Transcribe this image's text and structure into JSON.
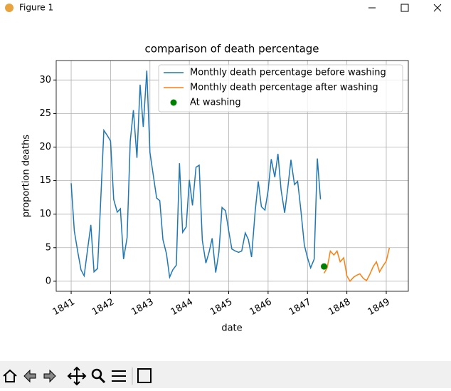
{
  "window": {
    "title": "Figure 1"
  },
  "chart_data": {
    "type": "line",
    "title": "comparison of death percentage",
    "x_label": "date",
    "y_label": "proportion deaths",
    "xlim": [
      1840.62,
      1849.56
    ],
    "ylim": [
      -1.5,
      32.9
    ],
    "xticks": [
      {
        "value": 1841,
        "label": "1841"
      },
      {
        "value": 1842,
        "label": "1842"
      },
      {
        "value": 1843,
        "label": "1843"
      },
      {
        "value": 1844,
        "label": "1844"
      },
      {
        "value": 1845,
        "label": "1845"
      },
      {
        "value": 1846,
        "label": "1846"
      },
      {
        "value": 1847,
        "label": "1847"
      },
      {
        "value": 1848,
        "label": "1848"
      },
      {
        "value": 1849,
        "label": "1849"
      }
    ],
    "yticks": [
      0,
      5,
      10,
      15,
      20,
      25,
      30
    ],
    "grid": true,
    "legend": "upper right",
    "series": [
      {
        "name": "Monthly death percentage before washing",
        "color": "#1f77b4",
        "x": [
          1841.0,
          1841.08,
          1841.17,
          1841.25,
          1841.33,
          1841.42,
          1841.5,
          1841.58,
          1841.67,
          1841.75,
          1841.83,
          1841.92,
          1842.0,
          1842.08,
          1842.17,
          1842.25,
          1842.33,
          1842.42,
          1842.5,
          1842.58,
          1842.67,
          1842.75,
          1842.83,
          1842.92,
          1843.0,
          1843.08,
          1843.17,
          1843.25,
          1843.33,
          1843.42,
          1843.5,
          1843.58,
          1843.67,
          1843.75,
          1843.83,
          1843.92,
          1844.0,
          1844.08,
          1844.17,
          1844.25,
          1844.33,
          1844.42,
          1844.5,
          1844.58,
          1844.67,
          1844.75,
          1844.83,
          1844.92,
          1845.0,
          1845.08,
          1845.17,
          1845.25,
          1845.33,
          1845.42,
          1845.5,
          1845.58,
          1845.67,
          1845.75,
          1845.83,
          1845.92,
          1846.0,
          1846.08,
          1846.17,
          1846.25,
          1846.33,
          1846.42,
          1846.5,
          1846.58,
          1846.67,
          1846.75,
          1846.83,
          1846.92,
          1847.0,
          1847.08,
          1847.17,
          1847.25,
          1847.33
        ],
        "values": [
          14.6,
          7.5,
          4.3,
          1.7,
          0.8,
          4.9,
          8.4,
          1.4,
          1.9,
          12.0,
          22.5,
          21.7,
          20.9,
          12.2,
          10.3,
          10.8,
          3.3,
          6.5,
          20.9,
          25.5,
          18.4,
          29.3,
          23.0,
          31.4,
          19.2,
          16.0,
          12.4,
          12.0,
          6.2,
          4.1,
          0.6,
          1.7,
          2.4,
          17.6,
          7.3,
          8.1,
          15.1,
          11.3,
          17.0,
          17.3,
          6.1,
          2.7,
          4.3,
          6.4,
          1.3,
          4.3,
          11.0,
          10.5,
          7.5,
          4.8,
          4.5,
          4.3,
          4.5,
          7.2,
          6.2,
          3.6,
          10.3,
          14.9,
          11.1,
          10.6,
          13.5,
          18.2,
          15.5,
          19.0,
          13.6,
          10.2,
          13.9,
          18.1,
          14.4,
          14.9,
          10.7,
          5.4,
          3.5,
          2.0,
          3.3,
          18.3,
          12.2
        ]
      },
      {
        "name": "Monthly death percentage after washing",
        "color": "#ff7f0e",
        "x": [
          1847.42,
          1847.5,
          1847.58,
          1847.67,
          1847.75,
          1847.83,
          1847.92,
          1848.0,
          1848.08,
          1848.17,
          1848.25,
          1848.33,
          1848.42,
          1848.5,
          1848.58,
          1848.67,
          1848.75,
          1848.83,
          1848.92,
          1849.0,
          1849.08
        ],
        "values": [
          1.2,
          2.0,
          4.5,
          3.9,
          4.5,
          2.9,
          3.5,
          0.8,
          0.0,
          0.6,
          0.9,
          1.1,
          0.4,
          0.1,
          1.0,
          2.2,
          2.9,
          1.4,
          2.3,
          3.0,
          5.0
        ]
      },
      {
        "name": "At washing",
        "color": "green",
        "type": "scatter",
        "x": [
          1847.42
        ],
        "values": [
          2.2
        ]
      }
    ]
  }
}
